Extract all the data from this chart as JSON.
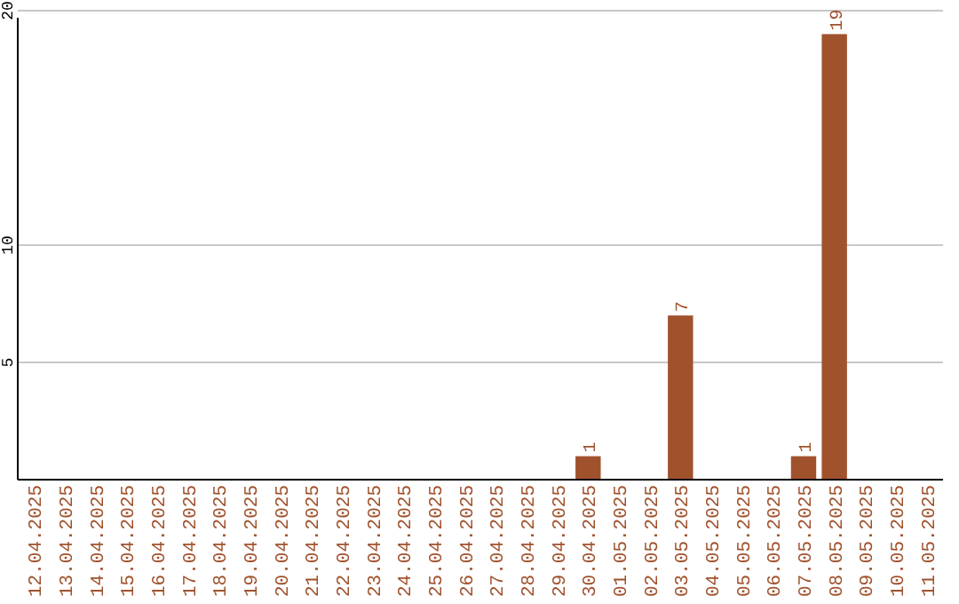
{
  "chart_data": {
    "type": "bar",
    "categories": [
      "12.04.2025",
      "13.04.2025",
      "14.04.2025",
      "15.04.2025",
      "16.04.2025",
      "17.04.2025",
      "18.04.2025",
      "19.04.2025",
      "20.04.2025",
      "21.04.2025",
      "22.04.2025",
      "23.04.2025",
      "24.04.2025",
      "25.04.2025",
      "26.04.2025",
      "27.04.2025",
      "28.04.2025",
      "29.04.2025",
      "30.04.2025",
      "01.05.2025",
      "02.05.2025",
      "03.05.2025",
      "04.05.2025",
      "05.05.2025",
      "06.05.2025",
      "07.05.2025",
      "08.05.2025",
      "09.05.2025",
      "10.05.2025",
      "11.05.2025"
    ],
    "values": [
      0,
      0,
      0,
      0,
      0,
      0,
      0,
      0,
      0,
      0,
      0,
      0,
      0,
      0,
      0,
      0,
      0,
      0,
      1,
      0,
      0,
      7,
      0,
      0,
      0,
      1,
      19,
      0,
      0,
      0
    ],
    "value_labels": [
      null,
      null,
      null,
      null,
      null,
      null,
      null,
      null,
      null,
      null,
      null,
      null,
      null,
      null,
      null,
      null,
      null,
      null,
      "1",
      null,
      null,
      "7",
      null,
      null,
      null,
      "1",
      "19",
      null,
      null,
      null
    ],
    "color": "#a0522d",
    "ylim": [
      0,
      20
    ],
    "yticks": [
      5,
      10,
      20
    ],
    "grid": "y"
  }
}
